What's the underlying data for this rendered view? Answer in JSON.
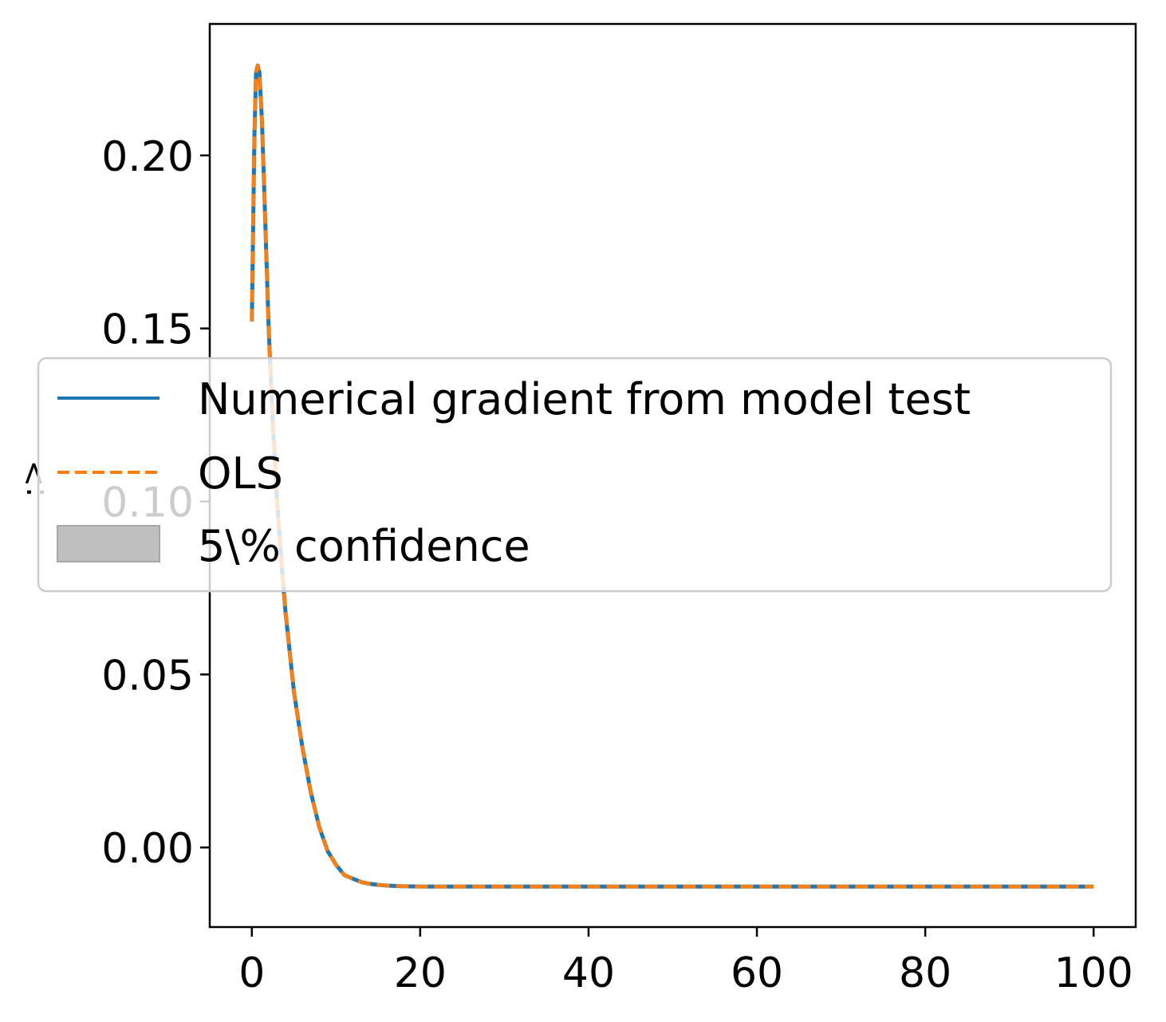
{
  "chart_data": {
    "type": "line",
    "title": "",
    "xlabel": "",
    "ylabel": ":>",
    "xlim": [
      -5,
      105
    ],
    "ylim": [
      -0.023,
      0.238
    ],
    "xticks": [
      0,
      20,
      40,
      60,
      80,
      100
    ],
    "yticks": [
      0.0,
      0.05,
      0.1,
      0.15,
      0.2
    ],
    "xtick_labels": [
      "0",
      "20",
      "40",
      "60",
      "80",
      "100"
    ],
    "ytick_labels": [
      "0.00",
      "0.05",
      "0.10",
      "0.15",
      "0.20"
    ],
    "grid": false,
    "legend": {
      "placement": "center-left",
      "entries": [
        {
          "label": "Numerical gradient from model test",
          "style": "solid",
          "color": "#1f77b4"
        },
        {
          "label": "OLS",
          "style": "dashed",
          "color": "#ff7f0e"
        },
        {
          "label": "5\\% confidence",
          "style": "patch",
          "color": "#bfbfbf"
        }
      ]
    },
    "series": [
      {
        "name": "Numerical gradient from model test",
        "color": "#1f77b4",
        "style": "solid",
        "x": [
          0,
          0.3,
          0.5,
          0.7,
          0.9,
          1.2,
          1.5,
          2,
          2.5,
          3,
          3.5,
          4,
          5,
          6,
          7,
          8,
          9,
          10,
          11,
          12,
          13,
          14,
          15,
          16,
          18,
          20,
          25,
          30,
          40,
          50,
          60,
          70,
          80,
          90,
          100
        ],
        "y": [
          0.152,
          0.205,
          0.224,
          0.226,
          0.224,
          0.21,
          0.188,
          0.15,
          0.122,
          0.1,
          0.083,
          0.068,
          0.045,
          0.029,
          0.016,
          0.006,
          -0.001,
          -0.005,
          -0.008,
          -0.009,
          -0.01,
          -0.0105,
          -0.0108,
          -0.011,
          -0.0112,
          -0.0113,
          -0.0113,
          -0.0113,
          -0.0113,
          -0.0113,
          -0.0113,
          -0.0113,
          -0.0113,
          -0.0113,
          -0.0113
        ]
      },
      {
        "name": "OLS",
        "color": "#ff7f0e",
        "style": "dashed",
        "x": [
          0,
          0.3,
          0.5,
          0.7,
          0.9,
          1.2,
          1.5,
          2,
          2.5,
          3,
          3.5,
          4,
          5,
          6,
          7,
          8,
          9,
          10,
          11,
          12,
          13,
          14,
          15,
          16,
          18,
          20,
          25,
          30,
          40,
          50,
          60,
          70,
          80,
          90,
          100
        ],
        "y": [
          0.152,
          0.205,
          0.224,
          0.226,
          0.224,
          0.21,
          0.188,
          0.15,
          0.122,
          0.1,
          0.083,
          0.068,
          0.045,
          0.029,
          0.016,
          0.006,
          -0.001,
          -0.005,
          -0.008,
          -0.009,
          -0.01,
          -0.0105,
          -0.0108,
          -0.011,
          -0.0112,
          -0.0113,
          -0.0113,
          -0.0113,
          -0.0113,
          -0.0113,
          -0.0113,
          -0.0113,
          -0.0113,
          -0.0113,
          -0.0113
        ]
      }
    ]
  }
}
